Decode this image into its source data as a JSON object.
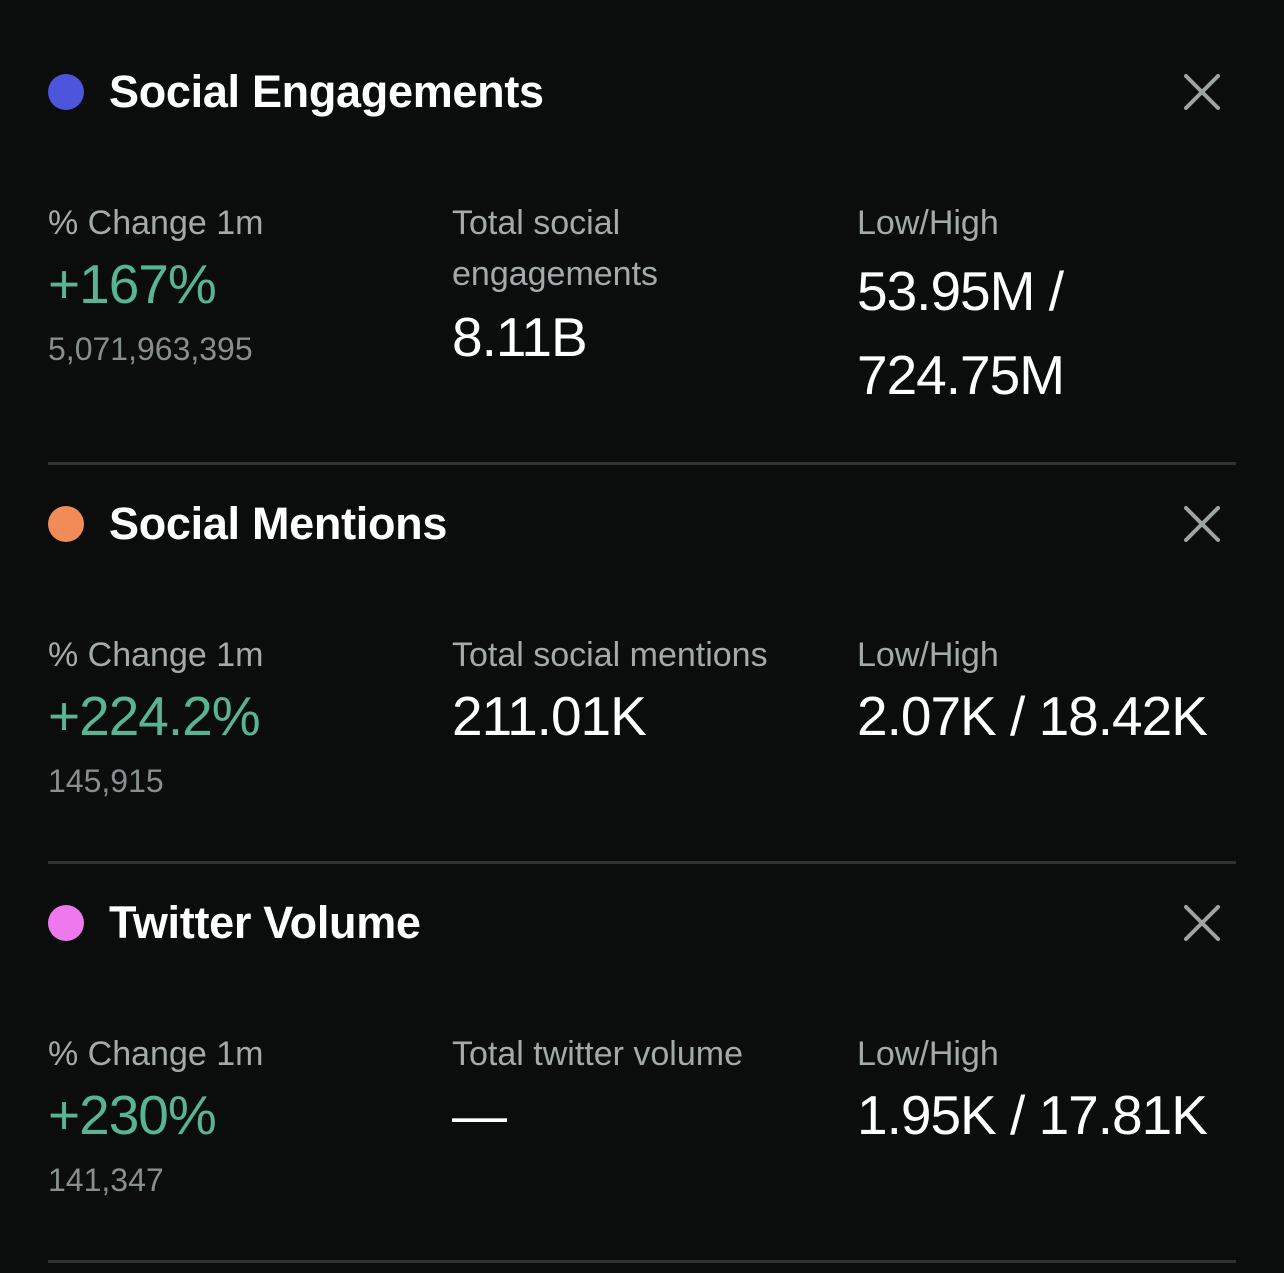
{
  "colors": {
    "background": "#0b0d0d",
    "positive": "#58b592",
    "label": "#a3aaaa",
    "divider": "#2e3232"
  },
  "metrics": [
    {
      "title": "Social Engagements",
      "dot_color": "#4d55dd",
      "close_icon": "close-icon",
      "change_label": "% Change 1m",
      "change_value": "+167%",
      "change_abs": "5,071,963,395",
      "total_label": "Total social engagements",
      "total_value": "8.11B",
      "lowhigh_label": "Low/High",
      "lowhigh_value": "53.95M / 724.75M"
    },
    {
      "title": "Social Mentions",
      "dot_color": "#f18b58",
      "close_icon": "close-icon",
      "change_label": "% Change 1m",
      "change_value": "+224.2%",
      "change_abs": "145,915",
      "total_label": "Total social mentions",
      "total_value": "211.01K",
      "lowhigh_label": "Low/High",
      "lowhigh_value": "2.07K / 18.42K"
    },
    {
      "title": "Twitter Volume",
      "dot_color": "#ee78ee",
      "close_icon": "close-icon",
      "change_label": "% Change 1m",
      "change_value": "+230%",
      "change_abs": "141,347",
      "total_label": "Total twitter volume",
      "total_value": "—",
      "lowhigh_label": "Low/High",
      "lowhigh_value": "1.95K / 17.81K"
    }
  ]
}
